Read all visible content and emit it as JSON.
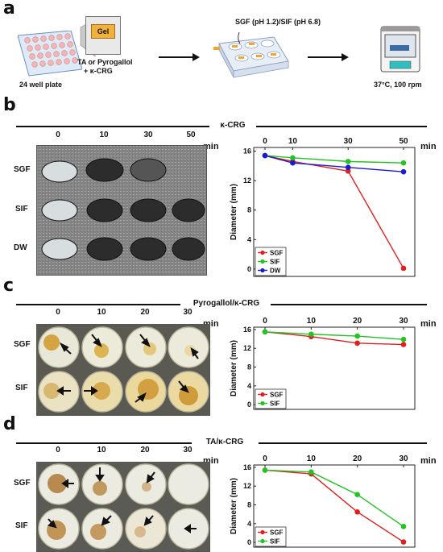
{
  "panel_a": {
    "letter": "a",
    "gel_label": "Gel",
    "plate_label": "24 well plate",
    "reagent_label_1": "TA or Pyrogallol",
    "reagent_label_2": "+ κ-CRG",
    "fluids_label": "SGF (pH 1.2)/SIF (pH 6.8)",
    "incubation_label": "37°C, 100 rpm"
  },
  "panel_b": {
    "letter": "b",
    "title": "κ-CRG",
    "time_points": [
      "0",
      "10",
      "30",
      "50"
    ],
    "unit": "min",
    "rows": [
      "SGF",
      "SIF",
      "DW"
    ]
  },
  "panel_c": {
    "letter": "c",
    "title": "Pyrogallol/κ-CRG",
    "time_points": [
      "0",
      "10",
      "20",
      "30"
    ],
    "unit": "min",
    "rows": [
      "SGF",
      "SIF"
    ]
  },
  "panel_d": {
    "letter": "d",
    "title": "TA/κ-CRG",
    "time_points": [
      "0",
      "10",
      "20",
      "30"
    ],
    "unit": "min",
    "rows": [
      "SGF",
      "SIF"
    ]
  },
  "colors": {
    "SGF": "#e02020",
    "SIF": "#22c322",
    "DW": "#1a1ad0"
  },
  "chart_data": [
    {
      "type": "line",
      "panel": "b",
      "x": [
        0,
        10,
        30,
        50
      ],
      "xticks": [
        "0",
        "10",
        "30",
        "50"
      ],
      "xunit": "min",
      "ylabel": "Diameter (mm)",
      "ylim": [
        -1,
        16.5
      ],
      "yticks": [
        "0",
        "4",
        "8",
        "12",
        "16"
      ],
      "legend_position": "bottom-left",
      "series": [
        {
          "name": "SGF",
          "values": [
            15.4,
            14.6,
            13.3,
            0.1
          ]
        },
        {
          "name": "SIF",
          "values": [
            15.4,
            15.1,
            14.6,
            14.4
          ]
        },
        {
          "name": "DW",
          "values": [
            15.4,
            14.4,
            13.8,
            13.2
          ]
        }
      ]
    },
    {
      "type": "line",
      "panel": "c",
      "x": [
        0,
        10,
        20,
        30
      ],
      "xticks": [
        "0",
        "10",
        "20",
        "30"
      ],
      "xunit": "min",
      "ylabel": "Diameter (mm)",
      "ylim": [
        -1,
        16.5
      ],
      "yticks": [
        "0",
        "4",
        "8",
        "12",
        "16"
      ],
      "legend_position": "bottom-left",
      "series": [
        {
          "name": "SGF",
          "values": [
            15.5,
            14.5,
            13.1,
            12.8
          ]
        },
        {
          "name": "SIF",
          "values": [
            15.5,
            15.0,
            14.6,
            13.9
          ]
        }
      ]
    },
    {
      "type": "line",
      "panel": "d",
      "x": [
        0,
        10,
        20,
        30
      ],
      "xticks": [
        "0",
        "10",
        "20",
        "30"
      ],
      "xunit": "min",
      "ylabel": "Diameter (mm)",
      "ylim": [
        -1,
        16.5
      ],
      "yticks": [
        "0",
        "4",
        "8",
        "12",
        "16"
      ],
      "legend_position": "bottom-left",
      "series": [
        {
          "name": "SGF",
          "values": [
            15.4,
            14.6,
            6.5,
            0.1
          ]
        },
        {
          "name": "SIF",
          "values": [
            15.4,
            15.0,
            10.2,
            3.4
          ]
        }
      ]
    }
  ]
}
